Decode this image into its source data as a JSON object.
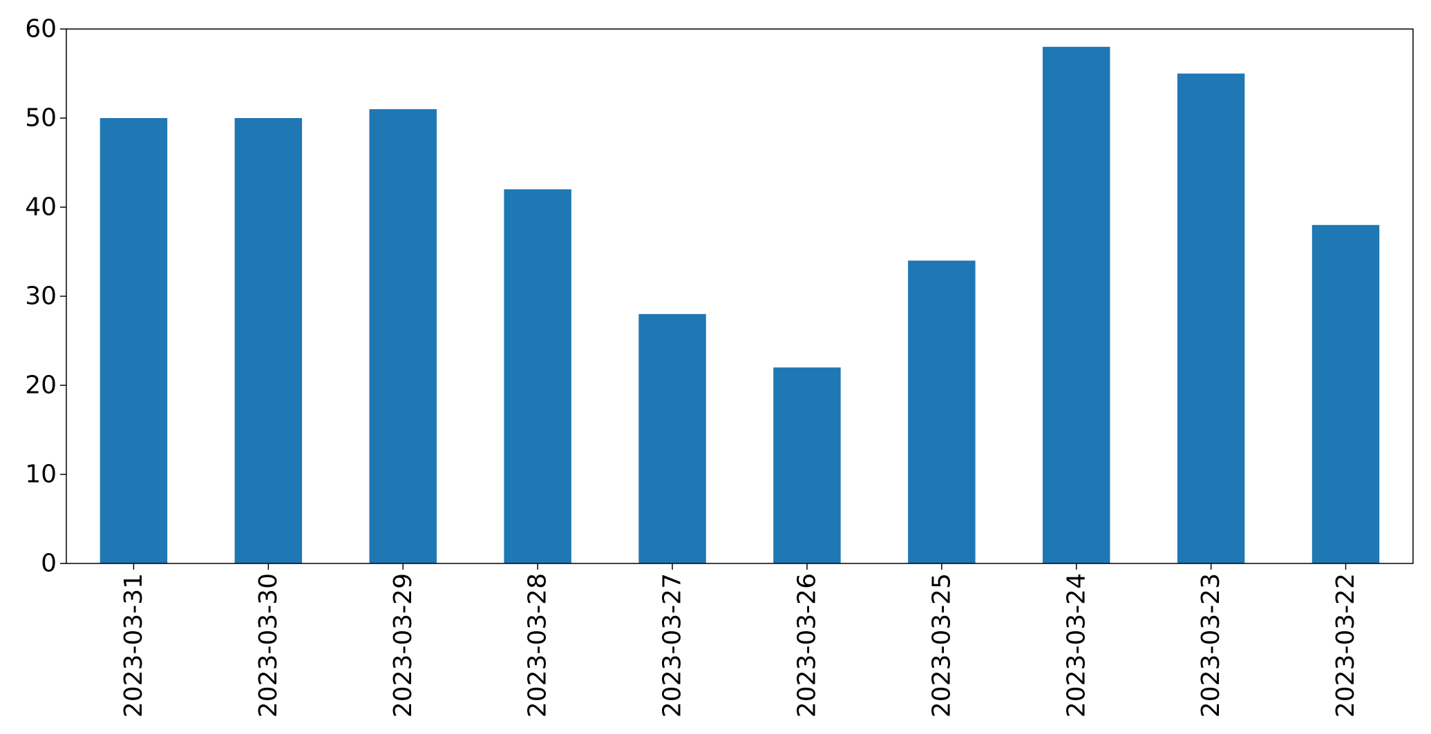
{
  "chart_data": {
    "type": "bar",
    "title": "",
    "xlabel": "",
    "ylabel": "",
    "categories": [
      "2023-03-31",
      "2023-03-30",
      "2023-03-29",
      "2023-03-28",
      "2023-03-27",
      "2023-03-26",
      "2023-03-25",
      "2023-03-24",
      "2023-03-23",
      "2023-03-22"
    ],
    "values": [
      50,
      50,
      51,
      42,
      28,
      22,
      34,
      58,
      55,
      38
    ],
    "ylim": [
      0,
      60
    ],
    "yticks": [
      0,
      10,
      20,
      30,
      40,
      50,
      60
    ],
    "ytick_labels": [
      "0",
      "10",
      "20",
      "30",
      "40",
      "50",
      "60"
    ],
    "grid": false,
    "legend": "none",
    "bar_color": "#1f77b4",
    "xtick_rotation": "vertical"
  }
}
